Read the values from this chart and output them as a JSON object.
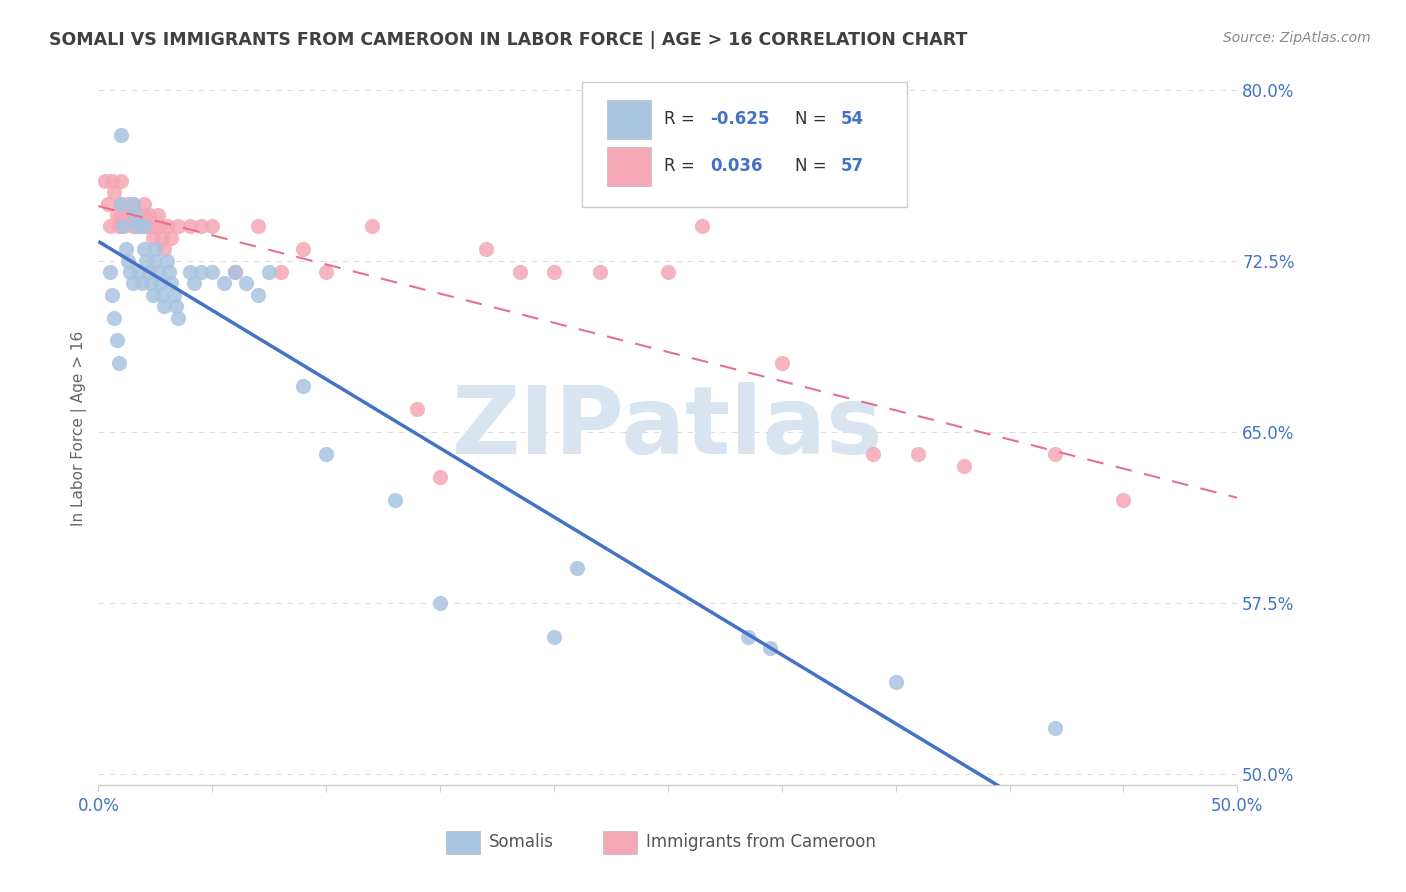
{
  "title": "SOMALI VS IMMIGRANTS FROM CAMEROON IN LABOR FORCE | AGE > 16 CORRELATION CHART",
  "source": "Source: ZipAtlas.com",
  "ylabel": "In Labor Force | Age > 16",
  "xlim": [
    0.0,
    0.5
  ],
  "ylim": [
    0.495,
    0.808
  ],
  "yticks": [
    0.5,
    0.575,
    0.65,
    0.725,
    0.8
  ],
  "ytick_labels": [
    "50.0%",
    "57.5%",
    "65.0%",
    "72.5%",
    "80.0%"
  ],
  "xtick_vals": [
    0.0,
    0.05,
    0.1,
    0.15,
    0.2,
    0.25,
    0.3,
    0.35,
    0.4,
    0.45,
    0.5
  ],
  "xtick_labels": [
    "0.0%",
    "",
    "",
    "",
    "",
    "",
    "",
    "",
    "",
    "",
    "50.0%"
  ],
  "somali_color": "#a8c4e0",
  "cameroon_color": "#f4a7b5",
  "somali_line_color": "#4472c4",
  "cameroon_line_color": "#e8708a",
  "r_somali": -0.625,
  "n_somali": 54,
  "r_cameroon": 0.036,
  "n_cameroon": 57,
  "label_somali": "Somalis",
  "label_cameroon": "Immigrants from Cameroon",
  "watermark": "ZIPatlas",
  "title_color": "#404040",
  "source_color": "#888888",
  "tick_color": "#4472c4",
  "grid_color": "#dddddd",
  "axis_color": "#cccccc",
  "watermark_color": "#d8e4f0",
  "somali_x": [
    0.005,
    0.006,
    0.007,
    0.008,
    0.009,
    0.01,
    0.01,
    0.011,
    0.012,
    0.013,
    0.014,
    0.015,
    0.015,
    0.016,
    0.017,
    0.018,
    0.019,
    0.02,
    0.02,
    0.021,
    0.022,
    0.023,
    0.024,
    0.025,
    0.025,
    0.026,
    0.027,
    0.028,
    0.029,
    0.03,
    0.031,
    0.032,
    0.033,
    0.034,
    0.035,
    0.04,
    0.042,
    0.045,
    0.05,
    0.055,
    0.06,
    0.065,
    0.07,
    0.075,
    0.09,
    0.1,
    0.13,
    0.15,
    0.2,
    0.21,
    0.285,
    0.295,
    0.35,
    0.42
  ],
  "somali_y": [
    0.72,
    0.71,
    0.7,
    0.69,
    0.68,
    0.78,
    0.75,
    0.74,
    0.73,
    0.725,
    0.72,
    0.715,
    0.75,
    0.745,
    0.74,
    0.72,
    0.715,
    0.74,
    0.73,
    0.725,
    0.72,
    0.715,
    0.71,
    0.73,
    0.725,
    0.72,
    0.715,
    0.71,
    0.705,
    0.725,
    0.72,
    0.715,
    0.71,
    0.705,
    0.7,
    0.72,
    0.715,
    0.72,
    0.72,
    0.715,
    0.72,
    0.715,
    0.71,
    0.72,
    0.67,
    0.64,
    0.62,
    0.575,
    0.56,
    0.59,
    0.56,
    0.555,
    0.54,
    0.52
  ],
  "cameroon_x": [
    0.003,
    0.004,
    0.005,
    0.006,
    0.007,
    0.008,
    0.009,
    0.01,
    0.01,
    0.01,
    0.011,
    0.012,
    0.013,
    0.014,
    0.015,
    0.015,
    0.016,
    0.017,
    0.018,
    0.019,
    0.02,
    0.02,
    0.021,
    0.022,
    0.023,
    0.024,
    0.025,
    0.026,
    0.027,
    0.028,
    0.029,
    0.03,
    0.032,
    0.035,
    0.04,
    0.045,
    0.05,
    0.06,
    0.07,
    0.08,
    0.09,
    0.1,
    0.12,
    0.14,
    0.15,
    0.17,
    0.185,
    0.2,
    0.22,
    0.25,
    0.265,
    0.3,
    0.34,
    0.36,
    0.38,
    0.42,
    0.45
  ],
  "cameroon_y": [
    0.76,
    0.75,
    0.74,
    0.76,
    0.755,
    0.745,
    0.74,
    0.76,
    0.75,
    0.745,
    0.74,
    0.745,
    0.75,
    0.745,
    0.75,
    0.74,
    0.745,
    0.74,
    0.745,
    0.74,
    0.75,
    0.745,
    0.74,
    0.745,
    0.74,
    0.735,
    0.74,
    0.745,
    0.74,
    0.735,
    0.73,
    0.74,
    0.735,
    0.74,
    0.74,
    0.74,
    0.74,
    0.72,
    0.74,
    0.72,
    0.73,
    0.72,
    0.74,
    0.66,
    0.63,
    0.73,
    0.72,
    0.72,
    0.72,
    0.72,
    0.74,
    0.68,
    0.64,
    0.64,
    0.635,
    0.64,
    0.62
  ]
}
